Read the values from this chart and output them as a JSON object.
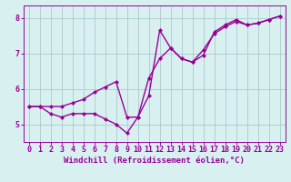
{
  "line1_x": [
    0,
    1,
    2,
    3,
    4,
    5,
    6,
    7,
    8,
    9,
    10,
    11,
    12,
    13,
    14,
    15,
    16,
    17,
    18,
    19,
    20,
    21,
    22,
    23
  ],
  "line1_y": [
    5.5,
    5.5,
    5.3,
    5.2,
    5.3,
    5.3,
    5.3,
    5.15,
    5.0,
    4.75,
    5.2,
    5.8,
    7.65,
    7.15,
    6.85,
    6.75,
    6.95,
    7.6,
    7.8,
    7.95,
    7.8,
    7.85,
    7.95,
    8.05
  ],
  "line2_x": [
    0,
    1,
    2,
    3,
    4,
    5,
    6,
    7,
    8,
    9,
    10,
    11,
    12,
    13,
    14,
    15,
    16,
    17,
    18,
    19,
    20,
    21,
    22,
    23
  ],
  "line2_y": [
    5.5,
    5.5,
    5.5,
    5.5,
    5.6,
    5.7,
    5.9,
    6.05,
    6.2,
    5.2,
    5.2,
    6.3,
    6.85,
    7.15,
    6.85,
    6.75,
    7.1,
    7.55,
    7.75,
    7.9,
    7.8,
    7.85,
    7.95,
    8.05
  ],
  "line_color": "#990099",
  "bg_color": "#d8f0f0",
  "grid_color": "#b0d0d0",
  "xlabel": "Windchill (Refroidissement éolien,°C)",
  "xlim": [
    -0.5,
    23.5
  ],
  "ylim": [
    4.5,
    8.35
  ],
  "yticks": [
    5,
    6,
    7,
    8
  ],
  "xticks": [
    0,
    1,
    2,
    3,
    4,
    5,
    6,
    7,
    8,
    9,
    10,
    11,
    12,
    13,
    14,
    15,
    16,
    17,
    18,
    19,
    20,
    21,
    22,
    23
  ],
  "xlabel_fontsize": 6.5,
  "tick_fontsize": 6.0,
  "line_width": 1.0,
  "marker": "D",
  "marker_size": 2.0
}
